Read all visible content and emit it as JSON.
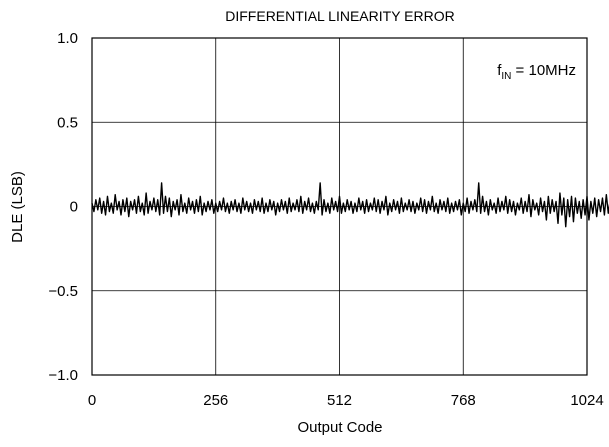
{
  "chart_data": {
    "type": "line",
    "title": "DIFFERENTIAL LINEARITY ERROR",
    "xlabel": "Output Code",
    "ylabel": "DLE (LSB)",
    "xlim": [
      0,
      1024
    ],
    "ylim": [
      -1.0,
      1.0
    ],
    "x_ticks": [
      0,
      256,
      512,
      768,
      1024
    ],
    "x_tick_labels": [
      "0",
      "256",
      "512",
      "768",
      "1024"
    ],
    "y_ticks": [
      1.0,
      0.5,
      0,
      -0.5,
      -1.0
    ],
    "y_tick_labels": [
      "1.0",
      "0.5",
      "0",
      "−0.5",
      "−1.0"
    ],
    "grid": true,
    "annotation": {
      "main": "f",
      "sub": "IN",
      "rest": " = 10MHz"
    },
    "series": [
      {
        "color": "#000000",
        "x_start": 0,
        "x_step": 4,
        "values": [
          0.02,
          -0.03,
          0.04,
          -0.02,
          0.05,
          -0.04,
          0.03,
          -0.05,
          0.06,
          -0.03,
          0.02,
          -0.04,
          0.07,
          -0.02,
          0.03,
          -0.05,
          0.04,
          -0.03,
          0.05,
          -0.06,
          0.03,
          -0.02,
          0.04,
          -0.04,
          0.06,
          -0.03,
          0.02,
          -0.05,
          0.08,
          -0.04,
          0.03,
          -0.02,
          0.05,
          -0.03,
          0.04,
          -0.05,
          0.14,
          -0.04,
          0.06,
          -0.03,
          0.05,
          -0.06,
          0.03,
          -0.02,
          0.04,
          -0.05,
          0.07,
          -0.03,
          0.02,
          -0.04,
          0.05,
          -0.02,
          0.03,
          -0.04,
          0.04,
          -0.03,
          0.06,
          -0.05,
          0.02,
          -0.03,
          0.03,
          -0.02,
          0.04,
          -0.04,
          0.02,
          -0.03,
          0.03,
          -0.02,
          0.05,
          -0.03,
          0.02,
          -0.04,
          0.03,
          -0.02,
          0.04,
          -0.03,
          0.02,
          -0.04,
          0.05,
          -0.02,
          0.03,
          -0.03,
          0.02,
          -0.04,
          0.04,
          -0.02,
          0.03,
          -0.03,
          0.05,
          -0.04,
          0.02,
          -0.03,
          0.04,
          -0.02,
          0.03,
          -0.05,
          0.02,
          -0.03,
          0.04,
          -0.02,
          0.03,
          -0.04,
          0.05,
          -0.03,
          0.02,
          -0.02,
          0.04,
          -0.03,
          0.06,
          -0.04,
          0.03,
          -0.02,
          0.05,
          -0.03,
          0.02,
          -0.04,
          0.03,
          -0.02,
          0.14,
          -0.05,
          0.04,
          -0.03,
          0.02,
          -0.04,
          0.05,
          -0.02,
          0.03,
          -0.03,
          0.06,
          -0.04,
          0.02,
          -0.03,
          0.04,
          -0.02,
          0.03,
          -0.04,
          0.02,
          -0.03,
          0.05,
          -0.02,
          0.03,
          -0.04,
          0.04,
          -0.03,
          0.02,
          -0.02,
          0.05,
          -0.03,
          0.04,
          -0.04,
          0.03,
          -0.02,
          0.06,
          -0.05,
          0.02,
          -0.03,
          0.04,
          -0.02,
          0.03,
          -0.04,
          0.05,
          -0.03,
          0.02,
          -0.02,
          0.04,
          -0.03,
          0.03,
          -0.04,
          0.02,
          -0.02,
          0.05,
          -0.03,
          0.04,
          -0.04,
          0.03,
          -0.02,
          0.06,
          -0.03,
          0.02,
          -0.04,
          0.04,
          -0.02,
          0.03,
          -0.03,
          0.05,
          -0.04,
          0.02,
          -0.03,
          0.03,
          -0.02,
          0.04,
          -0.05,
          0.02,
          -0.03,
          0.05,
          -0.04,
          0.03,
          -0.02,
          0.04,
          -0.03,
          0.14,
          -0.04,
          0.06,
          -0.03,
          0.03,
          -0.05,
          0.04,
          -0.02,
          0.02,
          -0.04,
          0.05,
          -0.03,
          0.03,
          -0.02,
          0.06,
          -0.04,
          0.04,
          -0.03,
          0.03,
          -0.05,
          0.02,
          -0.02,
          0.05,
          -0.04,
          0.03,
          -0.03,
          0.07,
          -0.06,
          0.04,
          -0.02,
          0.02,
          -0.05,
          0.05,
          -0.03,
          0.03,
          -0.08,
          0.06,
          -0.04,
          0.04,
          -0.03,
          0.03,
          -0.1,
          0.08,
          -0.05,
          0.05,
          -0.12,
          0.04,
          -0.06,
          0.06,
          -0.09,
          0.05,
          -0.04,
          0.03,
          -0.07,
          0.04,
          -0.05,
          0.06,
          -0.08,
          0.03,
          -0.04,
          0.05,
          -0.06,
          0.04,
          -0.03,
          0.05,
          -0.05,
          0.07,
          -0.04,
          0.04,
          -0.03,
          0.05,
          -0.06,
          0.03,
          -0.02,
          0.06,
          -0.04,
          0.04,
          -0.03,
          0.03,
          -0.05,
          0.05,
          -0.02,
          0.14,
          -0.04,
          0.06,
          -0.03,
          0.03,
          -0.05,
          0.04,
          -0.02,
          0.05,
          -0.04,
          0.03,
          -0.03,
          0.06,
          -0.02,
          0.04,
          -0.05,
          0.03,
          -0.03,
          0.05,
          -0.04,
          0.02,
          -0.02,
          0.04,
          -0.03,
          0.15,
          -0.05,
          0.06,
          -0.03,
          0.03,
          -0.04,
          0.04,
          -0.02,
          0.05,
          -0.05,
          0.03,
          -0.03,
          0.04,
          -0.02,
          0.06,
          -0.04,
          0.02,
          -0.03,
          0.05,
          -0.05,
          0.03,
          -0.02,
          0.04,
          -0.03,
          0.03,
          -0.04,
          0.05,
          -0.02,
          0.02,
          -0.03,
          0.06,
          -0.05,
          0.04,
          -0.03,
          0.03,
          -0.02,
          0.05,
          -0.04,
          0.02,
          -0.03,
          0.04,
          -0.02,
          0.03,
          -0.05,
          0.06,
          -0.03,
          0.04,
          -0.04,
          0.03,
          -0.02,
          0.05,
          -0.03,
          0.02,
          -0.04,
          0.05,
          -0.02,
          0.14,
          -0.03,
          0.06,
          -0.04,
          0.04,
          -0.02,
          0.03,
          -0.05,
          0.05,
          -0.03,
          0.03,
          -0.02,
          0.04,
          -0.04,
          0.06,
          -0.03,
          0.02,
          -0.02,
          0.05,
          -0.04,
          0.03,
          -0.03,
          0.04,
          -0.05,
          0.02,
          -0.02,
          0.06,
          -0.03,
          0.04,
          -0.04,
          0.03,
          -0.02,
          0.05,
          -0.03,
          0.03,
          -0.05,
          0.04,
          -0.02,
          0.06,
          -0.04,
          0.02,
          -0.03,
          0.05,
          -0.02,
          0.04,
          -0.04,
          0.03,
          -0.03,
          0.06,
          -0.05,
          0.04,
          -0.02,
          0.05,
          -0.03,
          0.03,
          -0.04,
          0.02,
          -0.02
        ]
      }
    ]
  }
}
